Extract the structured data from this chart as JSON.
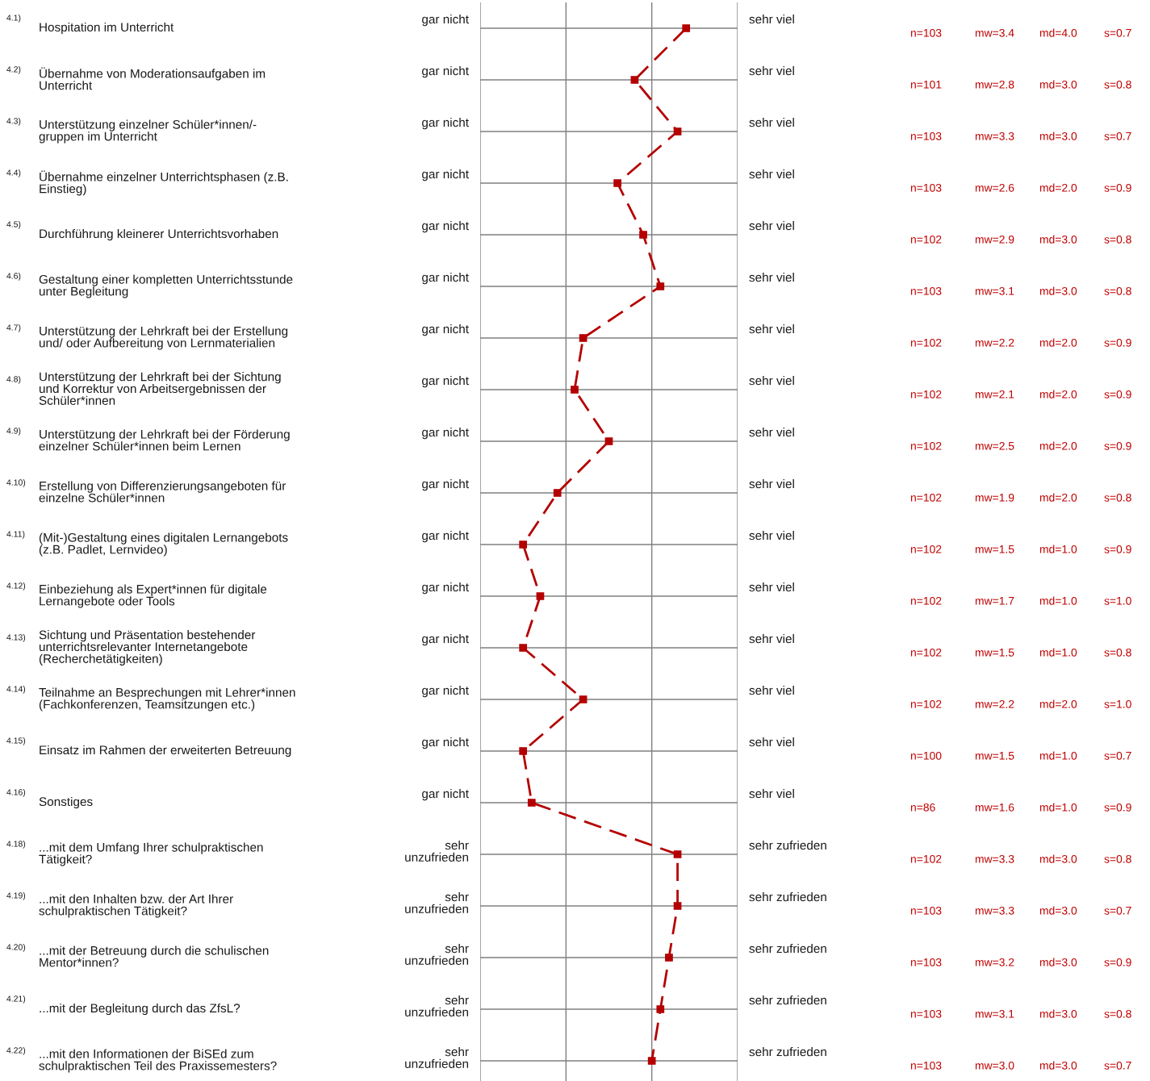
{
  "chart_data": {
    "type": "line",
    "orientation": "horizontal",
    "marker": "square",
    "line_style": "dashed",
    "grid": true,
    "tick_labels": "y",
    "categories": [
      "Hospitation im Unterricht",
      "Übernahme von Moderationsaufgaben im\nUnterricht",
      "Unterstützung einzelner Schüler*innen/-\ngruppen im Unterricht",
      "Übernahme einzelner Unterrichtsphasen (z.B.\nEinstieg)",
      "Durchführung kleinerer Unterrichtsvorhaben",
      "Gestaltung einer kompletten Unterrichtsstunde\nunter Begleitung",
      "Unterstützung der Lehrkraft bei der Erstellung\nund/ oder Aufbereitung von Lernmaterialien",
      "Unterstützung der Lehrkraft bei der Sichtung\nund Korrektur von Arbeitsergebnissen der\nSchüler*innen",
      "Unterstützung der Lehrkraft bei der Förderung\neinzelner Schüler*innen beim Lernen",
      "Erstellung von Differenzierungsangeboten für\neinzelne Schüler*innen",
      "(Mit-)Gestaltung eines digitalen Lernangebots\n(z.B. Padlet, Lernvideo)",
      "Einbeziehung als Expert*innen für digitale\nLernangebote oder Tools",
      "Sichtung und Präsentation bestehender\nunterrichtsrelevanter Internetangebote\n(Recherchetätigkeiten)",
      "Teilnahme an Besprechungen mit Lehrer*innen\n(Fachkonferenzen, Teamsitzungen etc.)",
      "Einsatz im Rahmen der erweiterten Betreuung",
      "Sonstiges",
      "...mit dem Umfang Ihrer schulpraktischen\nTätigkeit?",
      "...mit den Inhalten bzw. der Art Ihrer\nschulpraktischen Tätigkeit?",
      "...mit der Betreuung durch die schulischen\nMentor*innen?",
      "...mit der Begleitung durch das ZfsL?",
      "...mit den Informationen der BiSEd zum\nschulpraktischen Teil des Praxissemesters?"
    ],
    "series": [
      {
        "color": "#b40000",
        "values": [
          3.4,
          2.8,
          3.3,
          2.6,
          2.9,
          3.1,
          2.2,
          2.1,
          2.5,
          1.9,
          1.5,
          1.7,
          1.5,
          2.2,
          1.5,
          1.6,
          3.3,
          3.3,
          3.2,
          3.1,
          3.0
        ],
        "value_labels": [
          "mw=3.4",
          "mw=2.8",
          "mw=3.3",
          "mw=2.6",
          "mw=2.9",
          "mw=3.1",
          "mw=2.2",
          "mw=2.1",
          "mw=2.5",
          "mw=1.9",
          "mw=1.5",
          "mw=1.7",
          "mw=1.5",
          "mw=2.2",
          "mw=1.5",
          "mw=1.6",
          "mw=3.3",
          "mw=3.3",
          "mw=3.2",
          "mw=3.1",
          "mw=3.0"
        ]
      }
    ],
    "xlim": [
      1,
      4
    ],
    "xticks": [
      {
        "value": 1,
        "label": null
      },
      {
        "value": 2,
        "label": null
      },
      {
        "value": 3,
        "label": null
      },
      {
        "value": 4,
        "label": null
      }
    ],
    "annotations": [
      "4.1)",
      "gar nicht",
      "sehr viel",
      "n=103",
      "md=4.0",
      "s=0.7",
      "4.2)",
      "gar nicht",
      "sehr viel",
      "n=101",
      "md=3.0",
      "s=0.8",
      "4.3)",
      "gar nicht",
      "sehr viel",
      "n=103",
      "md=3.0",
      "s=0.7",
      "4.4)",
      "gar nicht",
      "sehr viel",
      "n=103",
      "md=2.0",
      "s=0.9",
      "4.5)",
      "gar nicht",
      "sehr viel",
      "n=102",
      "md=3.0",
      "s=0.8",
      "4.6)",
      "gar nicht",
      "sehr viel",
      "n=103",
      "md=3.0",
      "s=0.8",
      "4.7)",
      "gar nicht",
      "sehr viel",
      "n=102",
      "md=2.0",
      "s=0.9",
      "4.8)",
      "gar nicht",
      "sehr viel",
      "n=102",
      "md=2.0",
      "s=0.9",
      "4.9)",
      "gar nicht",
      "sehr viel",
      "n=102",
      "md=2.0",
      "s=0.9",
      "4.10)",
      "gar nicht",
      "sehr viel",
      "n=102",
      "md=2.0",
      "s=0.8",
      "4.11)",
      "gar nicht",
      "sehr viel",
      "n=102",
      "md=1.0",
      "s=0.9",
      "4.12)",
      "gar nicht",
      "sehr viel",
      "n=102",
      "md=1.0",
      "s=1.0",
      "4.13)",
      "gar nicht",
      "sehr viel",
      "n=102",
      "md=1.0",
      "s=0.8",
      "4.14)",
      "gar nicht",
      "sehr viel",
      "n=102",
      "md=2.0",
      "s=1.0",
      "4.15)",
      "gar nicht",
      "sehr viel",
      "n=100",
      "md=1.0",
      "s=0.7",
      "4.16)",
      "gar nicht",
      "sehr viel",
      "n=86",
      "md=1.0",
      "s=0.9",
      "4.18)",
      "sehr\nunzufrieden",
      "sehr zufrieden",
      "n=102",
      "md=3.0",
      "s=0.8",
      "4.19)",
      "sehr\nunzufrieden",
      "sehr zufrieden",
      "n=103",
      "md=3.0",
      "s=0.7",
      "4.20)",
      "sehr\nunzufrieden",
      "sehr zufrieden",
      "n=103",
      "md=3.0",
      "s=0.9",
      "4.21)",
      "sehr\nunzufrieden",
      "sehr zufrieden",
      "n=103",
      "md=3.0",
      "s=0.8",
      "4.22)",
      "sehr\nunzufrieden",
      "sehr zufrieden",
      "n=103",
      "md=3.0",
      "s=0.7"
    ]
  }
}
